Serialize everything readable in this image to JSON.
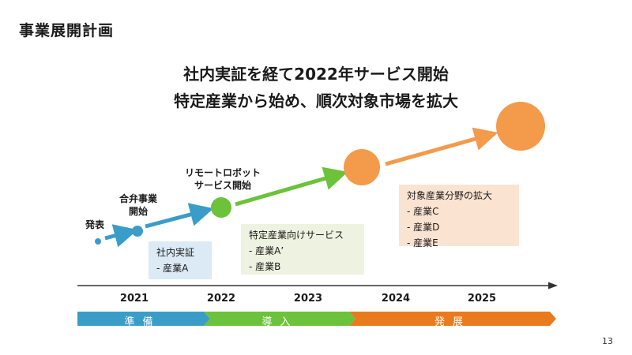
{
  "slide": {
    "title": "事業展開計画",
    "headline_line1": "社内実証を経て2022年サービス開始",
    "headline_line2": "特定産業から始め、順次対象市場を拡大",
    "page_number": "13"
  },
  "milestones": {
    "announce": "発表",
    "jv_line1": "合弁事業",
    "jv_line2": "開始",
    "remote_line1": "リモートロボット",
    "remote_line2": "サービス開始"
  },
  "notes": {
    "internal": {
      "title": "社内実証",
      "items": [
        "- 産業A"
      ]
    },
    "specific": {
      "title": "特定産業向けサービス",
      "items": [
        "- 産業A’",
        "- 産業B"
      ]
    },
    "expansion": {
      "title": "対象産業分野の拡大",
      "items": [
        "- 産業C",
        "- 産業D",
        "- 産業E"
      ]
    }
  },
  "timeline": {
    "years": [
      "2021",
      "2022",
      "2023",
      "2024",
      "2025"
    ],
    "phases": [
      {
        "label": "準備",
        "color": "#3a9dc8"
      },
      {
        "label": "導入",
        "color": "#6cc23a"
      },
      {
        "label": "発展",
        "color": "#ea7a1e"
      }
    ]
  },
  "colors": {
    "blue": "#3a9dc8",
    "green": "#6cc23a",
    "orange": "#f39a4b"
  }
}
